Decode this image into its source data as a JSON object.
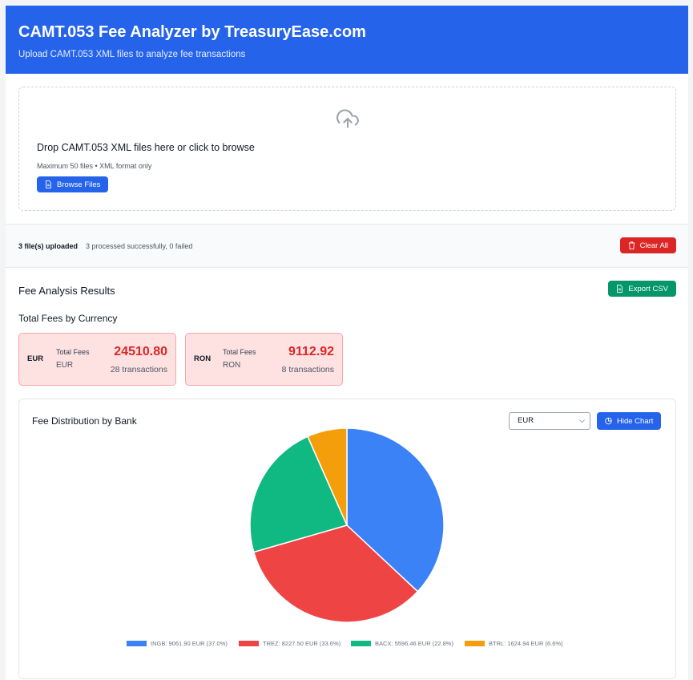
{
  "header": {
    "title": "CAMT.053 Fee Analyzer by TreasuryEase.com",
    "subtitle": "Upload CAMT.053 XML files to analyze fee transactions"
  },
  "upload": {
    "icon": "cloud-upload-icon",
    "title": "Drop CAMT.053 XML files here or click to browse",
    "hint": "Maximum 50 files • XML format only",
    "browse_label": "Browse Files"
  },
  "status": {
    "count_label": "3 file(s) uploaded",
    "detail_label": "3 processed successfully, 0 failed",
    "clear_label": "Clear All"
  },
  "results": {
    "title": "Fee Analysis Results",
    "export_label": "Export CSV",
    "section_title": "Total Fees by Currency",
    "currencies": [
      {
        "code": "EUR",
        "total_label": "Total Fees",
        "currency": "EUR",
        "amount": "24510.80",
        "transactions": "28 transactions"
      },
      {
        "code": "RON",
        "total_label": "Total Fees",
        "currency": "RON",
        "amount": "9112.92",
        "transactions": "8 transactions"
      }
    ]
  },
  "chart_panel": {
    "title": "Fee Distribution by Bank",
    "selected_currency": "EUR",
    "hide_label": "Hide Chart"
  },
  "colors": {
    "brand": "#2563eb",
    "danger": "#dc2626",
    "success": "#059669"
  },
  "chart_data": {
    "type": "pie",
    "title": "",
    "series": [
      {
        "name": "INGB",
        "value": 9061.9,
        "legend": "INGB: 9061.90 EUR (37.0%)",
        "color": "#3b82f6"
      },
      {
        "name": "TREZ",
        "value": 8227.5,
        "legend": "TREZ: 8227.50 EUR (33.6%)",
        "color": "#ef4444"
      },
      {
        "name": "BACX",
        "value": 5596.46,
        "legend": "BACX: 5596.46 EUR (22.8%)",
        "color": "#10b981"
      },
      {
        "name": "BTRL",
        "value": 1624.94,
        "legend": "BTRL: 1624.94 EUR (6.6%)",
        "color": "#f59e0b"
      }
    ],
    "legend_position": "bottom"
  }
}
